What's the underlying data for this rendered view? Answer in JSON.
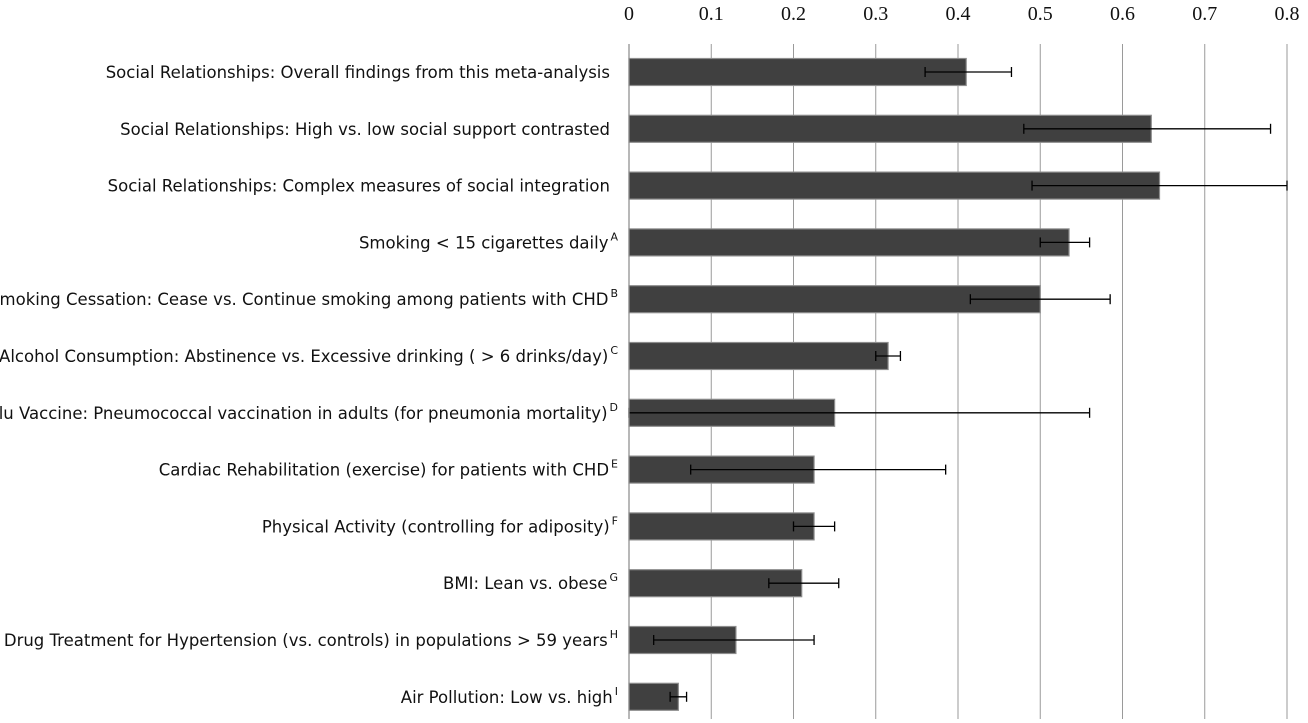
{
  "chart_data": {
    "type": "bar",
    "orientation": "horizontal",
    "title": "",
    "xlabel": "",
    "ylabel": "",
    "xlim": [
      0,
      0.8
    ],
    "x_ticks": [
      "0",
      "0.1",
      "0.2",
      "0.3",
      "0.4",
      "0.5",
      "0.6",
      "0.7",
      "0.8"
    ],
    "x_tick_values": [
      0,
      0.1,
      0.2,
      0.3,
      0.4,
      0.5,
      0.6,
      0.7,
      0.8
    ],
    "x_axis_position": "top",
    "grid": "vertical",
    "legend": "none",
    "bar_color": "#404040",
    "bar_edge_color": "#8c8c8c",
    "categories": [
      {
        "label": "Social Relationships: Overall findings from this meta-analysis",
        "sup": ""
      },
      {
        "label": "Social Relationships: High vs. low social support contrasted",
        "sup": ""
      },
      {
        "label": "Social Relationships: Complex measures of social integration",
        "sup": ""
      },
      {
        "label": "Smoking < 15 cigarettes daily",
        "sup": "A"
      },
      {
        "label": "Smoking Cessation: Cease vs. Continue smoking among patients with CHD",
        "sup": "B"
      },
      {
        "label": "Alcohol Consumption: Abstinence vs. Excessive drinking ( > 6 drinks/day)",
        "sup": "C"
      },
      {
        "label": "Flu Vaccine: Pneumococcal vaccination in adults (for pneumonia mortality)",
        "sup": "D"
      },
      {
        "label": "Cardiac Rehabilitation (exercise) for patients with CHD",
        "sup": "E"
      },
      {
        "label": "Physical Activity (controlling for adiposity)",
        "sup": "F"
      },
      {
        "label": "BMI: Lean vs. obese",
        "sup": "G"
      },
      {
        "label": "Drug Treatment for Hypertension (vs. controls) in populations > 59 years",
        "sup": "H"
      },
      {
        "label": "Air Pollution: Low vs. high",
        "sup": "I"
      }
    ],
    "values": [
      0.41,
      0.635,
      0.645,
      0.535,
      0.5,
      0.315,
      0.25,
      0.225,
      0.225,
      0.21,
      0.13,
      0.06
    ],
    "error_low": [
      0.36,
      0.48,
      0.49,
      0.5,
      0.415,
      0.3,
      0.0,
      0.075,
      0.2,
      0.17,
      0.03,
      0.05
    ],
    "error_high": [
      0.465,
      0.78,
      0.8,
      0.56,
      0.585,
      0.33,
      0.56,
      0.385,
      0.25,
      0.255,
      0.225,
      0.07
    ]
  }
}
